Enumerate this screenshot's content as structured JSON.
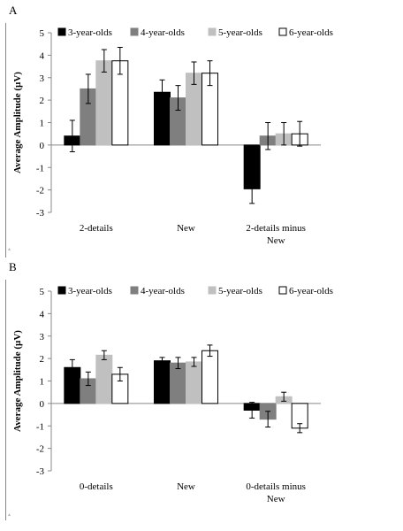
{
  "panels": [
    {
      "letter": "A",
      "chart_data": {
        "type": "bar",
        "ylabel": "Average Amplitude (µV)",
        "ylim": [
          -3,
          5
        ],
        "yticks": [
          5,
          4,
          3,
          2,
          1,
          0,
          -1,
          -2,
          -3
        ],
        "categories": [
          [
            "2-details"
          ],
          [
            "New"
          ],
          [
            "2-details minus",
            "New"
          ]
        ],
        "series": [
          {
            "name": "3-year-olds",
            "color": "#000000",
            "values": [
              0.4,
              2.35,
              -1.95
            ],
            "errors": [
              0.7,
              0.55,
              0.65
            ]
          },
          {
            "name": "4-year-olds",
            "color": "#7f7f7f",
            "values": [
              2.5,
              2.1,
              0.4
            ],
            "errors": [
              0.65,
              0.55,
              0.6
            ]
          },
          {
            "name": "5-year-olds",
            "color": "#c0c0c0",
            "values": [
              3.75,
              3.2,
              0.5
            ],
            "errors": [
              0.5,
              0.5,
              0.5
            ]
          },
          {
            "name": "6-year-olds",
            "color": "#ffffff",
            "values": [
              3.75,
              3.2,
              0.5
            ],
            "errors": [
              0.6,
              0.55,
              0.55
            ]
          }
        ],
        "legend": "top"
      }
    },
    {
      "letter": "B",
      "chart_data": {
        "type": "bar",
        "ylabel": "Average Amplitude (µV)",
        "ylim": [
          -3,
          5
        ],
        "yticks": [
          5,
          4,
          3,
          2,
          1,
          0,
          -1,
          -2,
          -3
        ],
        "categories": [
          [
            "0-details"
          ],
          [
            "New"
          ],
          [
            "0-details minus",
            "New"
          ]
        ],
        "series": [
          {
            "name": "3-year-olds",
            "color": "#000000",
            "values": [
              1.6,
              1.9,
              -0.3
            ],
            "errors": [
              0.35,
              0.15,
              0.35
            ]
          },
          {
            "name": "4-year-olds",
            "color": "#7f7f7f",
            "values": [
              1.1,
              1.8,
              -0.7
            ],
            "errors": [
              0.3,
              0.25,
              0.35
            ]
          },
          {
            "name": "5-year-olds",
            "color": "#c0c0c0",
            "values": [
              2.15,
              1.85,
              0.3
            ],
            "errors": [
              0.2,
              0.2,
              0.2
            ]
          },
          {
            "name": "6-year-olds",
            "color": "#ffffff",
            "values": [
              1.3,
              2.35,
              -1.1
            ],
            "errors": [
              0.3,
              0.25,
              0.2
            ]
          }
        ],
        "legend": "top"
      }
    }
  ]
}
